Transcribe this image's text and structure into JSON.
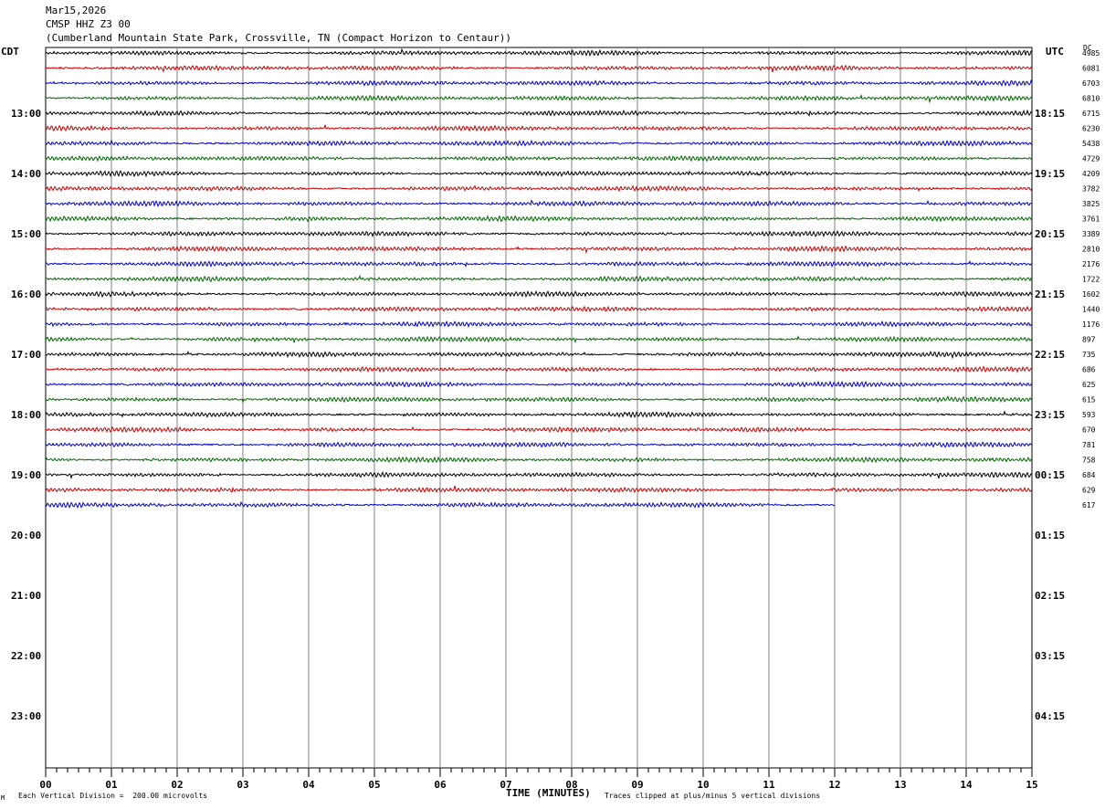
{
  "header": {
    "date": "Mar15,2026",
    "channel": "CMSP HHZ Z3 00",
    "station": "(Cumberland Mountain State Park, Crossville, TN (Compact Horizon to Centaur))"
  },
  "left_tz": "CDT",
  "right_tz": "UTC",
  "dc_label": "DC",
  "footer": {
    "scale": "Each Vertical Division =  200.00 microvolts",
    "clip": "Traces clipped at plus/minus 5 vertical divisions",
    "corner_mark": "M"
  },
  "colors": {
    "trace_cycle": [
      "#000000",
      "#cc0000",
      "#0000cc",
      "#006600"
    ],
    "grid": "#808080"
  },
  "chart_data": {
    "type": "line",
    "title": "CMSP HHZ Z3 00",
    "xlabel": "TIME (MINUTES)",
    "x_ticks": [
      "00",
      "01",
      "02",
      "03",
      "04",
      "05",
      "06",
      "07",
      "08",
      "09",
      "10",
      "11",
      "12",
      "13",
      "14",
      "15"
    ],
    "xlim": [
      0,
      15
    ],
    "left_hour_labels": [
      "13:00",
      "14:00",
      "15:00",
      "16:00",
      "17:00",
      "18:00",
      "19:00",
      "20:00",
      "21:00",
      "22:00",
      "23:00"
    ],
    "right_hour_labels": [
      "18:15",
      "19:15",
      "20:15",
      "21:15",
      "22:15",
      "23:15",
      "00:15",
      "01:15",
      "02:15",
      "03:15",
      "04:15"
    ],
    "rows_per_hour": 4,
    "dc_offsets": [
      4985,
      6081,
      6703,
      6810,
      6715,
      6230,
      5438,
      4729,
      4209,
      3782,
      3825,
      3761,
      3389,
      2810,
      2176,
      1722,
      1602,
      1440,
      1176,
      897,
      735,
      686,
      625,
      615,
      593,
      670,
      781,
      758,
      684,
      629,
      617
    ],
    "last_trace_end_minute": 12.0,
    "grid": true
  }
}
